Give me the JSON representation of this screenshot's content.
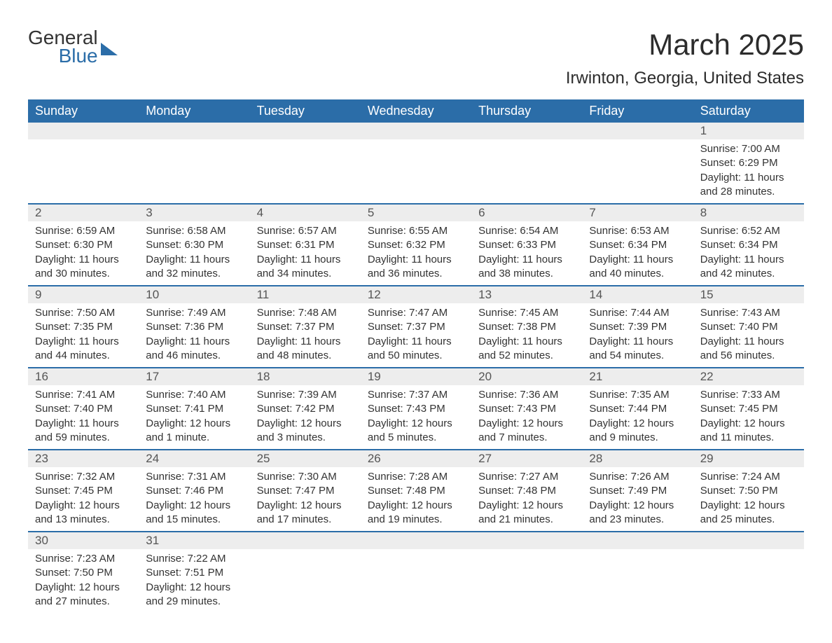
{
  "logo": {
    "line1": "General",
    "line2": "Blue"
  },
  "title": "March 2025",
  "location": "Irwinton, Georgia, United States",
  "columns": [
    "Sunday",
    "Monday",
    "Tuesday",
    "Wednesday",
    "Thursday",
    "Friday",
    "Saturday"
  ],
  "colors": {
    "header_bg": "#2b6da8",
    "header_text": "#ffffff",
    "daynum_bg": "#ededed",
    "border": "#2b6da8",
    "body_text": "#333333"
  },
  "days": {
    "d1": {
      "num": "1",
      "sunrise": "Sunrise: 7:00 AM",
      "sunset": "Sunset: 6:29 PM",
      "dl1": "Daylight: 11 hours",
      "dl2": "and 28 minutes."
    },
    "d2": {
      "num": "2",
      "sunrise": "Sunrise: 6:59 AM",
      "sunset": "Sunset: 6:30 PM",
      "dl1": "Daylight: 11 hours",
      "dl2": "and 30 minutes."
    },
    "d3": {
      "num": "3",
      "sunrise": "Sunrise: 6:58 AM",
      "sunset": "Sunset: 6:30 PM",
      "dl1": "Daylight: 11 hours",
      "dl2": "and 32 minutes."
    },
    "d4": {
      "num": "4",
      "sunrise": "Sunrise: 6:57 AM",
      "sunset": "Sunset: 6:31 PM",
      "dl1": "Daylight: 11 hours",
      "dl2": "and 34 minutes."
    },
    "d5": {
      "num": "5",
      "sunrise": "Sunrise: 6:55 AM",
      "sunset": "Sunset: 6:32 PM",
      "dl1": "Daylight: 11 hours",
      "dl2": "and 36 minutes."
    },
    "d6": {
      "num": "6",
      "sunrise": "Sunrise: 6:54 AM",
      "sunset": "Sunset: 6:33 PM",
      "dl1": "Daylight: 11 hours",
      "dl2": "and 38 minutes."
    },
    "d7": {
      "num": "7",
      "sunrise": "Sunrise: 6:53 AM",
      "sunset": "Sunset: 6:34 PM",
      "dl1": "Daylight: 11 hours",
      "dl2": "and 40 minutes."
    },
    "d8": {
      "num": "8",
      "sunrise": "Sunrise: 6:52 AM",
      "sunset": "Sunset: 6:34 PM",
      "dl1": "Daylight: 11 hours",
      "dl2": "and 42 minutes."
    },
    "d9": {
      "num": "9",
      "sunrise": "Sunrise: 7:50 AM",
      "sunset": "Sunset: 7:35 PM",
      "dl1": "Daylight: 11 hours",
      "dl2": "and 44 minutes."
    },
    "d10": {
      "num": "10",
      "sunrise": "Sunrise: 7:49 AM",
      "sunset": "Sunset: 7:36 PM",
      "dl1": "Daylight: 11 hours",
      "dl2": "and 46 minutes."
    },
    "d11": {
      "num": "11",
      "sunrise": "Sunrise: 7:48 AM",
      "sunset": "Sunset: 7:37 PM",
      "dl1": "Daylight: 11 hours",
      "dl2": "and 48 minutes."
    },
    "d12": {
      "num": "12",
      "sunrise": "Sunrise: 7:47 AM",
      "sunset": "Sunset: 7:37 PM",
      "dl1": "Daylight: 11 hours",
      "dl2": "and 50 minutes."
    },
    "d13": {
      "num": "13",
      "sunrise": "Sunrise: 7:45 AM",
      "sunset": "Sunset: 7:38 PM",
      "dl1": "Daylight: 11 hours",
      "dl2": "and 52 minutes."
    },
    "d14": {
      "num": "14",
      "sunrise": "Sunrise: 7:44 AM",
      "sunset": "Sunset: 7:39 PM",
      "dl1": "Daylight: 11 hours",
      "dl2": "and 54 minutes."
    },
    "d15": {
      "num": "15",
      "sunrise": "Sunrise: 7:43 AM",
      "sunset": "Sunset: 7:40 PM",
      "dl1": "Daylight: 11 hours",
      "dl2": "and 56 minutes."
    },
    "d16": {
      "num": "16",
      "sunrise": "Sunrise: 7:41 AM",
      "sunset": "Sunset: 7:40 PM",
      "dl1": "Daylight: 11 hours",
      "dl2": "and 59 minutes."
    },
    "d17": {
      "num": "17",
      "sunrise": "Sunrise: 7:40 AM",
      "sunset": "Sunset: 7:41 PM",
      "dl1": "Daylight: 12 hours",
      "dl2": "and 1 minute."
    },
    "d18": {
      "num": "18",
      "sunrise": "Sunrise: 7:39 AM",
      "sunset": "Sunset: 7:42 PM",
      "dl1": "Daylight: 12 hours",
      "dl2": "and 3 minutes."
    },
    "d19": {
      "num": "19",
      "sunrise": "Sunrise: 7:37 AM",
      "sunset": "Sunset: 7:43 PM",
      "dl1": "Daylight: 12 hours",
      "dl2": "and 5 minutes."
    },
    "d20": {
      "num": "20",
      "sunrise": "Sunrise: 7:36 AM",
      "sunset": "Sunset: 7:43 PM",
      "dl1": "Daylight: 12 hours",
      "dl2": "and 7 minutes."
    },
    "d21": {
      "num": "21",
      "sunrise": "Sunrise: 7:35 AM",
      "sunset": "Sunset: 7:44 PM",
      "dl1": "Daylight: 12 hours",
      "dl2": "and 9 minutes."
    },
    "d22": {
      "num": "22",
      "sunrise": "Sunrise: 7:33 AM",
      "sunset": "Sunset: 7:45 PM",
      "dl1": "Daylight: 12 hours",
      "dl2": "and 11 minutes."
    },
    "d23": {
      "num": "23",
      "sunrise": "Sunrise: 7:32 AM",
      "sunset": "Sunset: 7:45 PM",
      "dl1": "Daylight: 12 hours",
      "dl2": "and 13 minutes."
    },
    "d24": {
      "num": "24",
      "sunrise": "Sunrise: 7:31 AM",
      "sunset": "Sunset: 7:46 PM",
      "dl1": "Daylight: 12 hours",
      "dl2": "and 15 minutes."
    },
    "d25": {
      "num": "25",
      "sunrise": "Sunrise: 7:30 AM",
      "sunset": "Sunset: 7:47 PM",
      "dl1": "Daylight: 12 hours",
      "dl2": "and 17 minutes."
    },
    "d26": {
      "num": "26",
      "sunrise": "Sunrise: 7:28 AM",
      "sunset": "Sunset: 7:48 PM",
      "dl1": "Daylight: 12 hours",
      "dl2": "and 19 minutes."
    },
    "d27": {
      "num": "27",
      "sunrise": "Sunrise: 7:27 AM",
      "sunset": "Sunset: 7:48 PM",
      "dl1": "Daylight: 12 hours",
      "dl2": "and 21 minutes."
    },
    "d28": {
      "num": "28",
      "sunrise": "Sunrise: 7:26 AM",
      "sunset": "Sunset: 7:49 PM",
      "dl1": "Daylight: 12 hours",
      "dl2": "and 23 minutes."
    },
    "d29": {
      "num": "29",
      "sunrise": "Sunrise: 7:24 AM",
      "sunset": "Sunset: 7:50 PM",
      "dl1": "Daylight: 12 hours",
      "dl2": "and 25 minutes."
    },
    "d30": {
      "num": "30",
      "sunrise": "Sunrise: 7:23 AM",
      "sunset": "Sunset: 7:50 PM",
      "dl1": "Daylight: 12 hours",
      "dl2": "and 27 minutes."
    },
    "d31": {
      "num": "31",
      "sunrise": "Sunrise: 7:22 AM",
      "sunset": "Sunset: 7:51 PM",
      "dl1": "Daylight: 12 hours",
      "dl2": "and 29 minutes."
    }
  }
}
